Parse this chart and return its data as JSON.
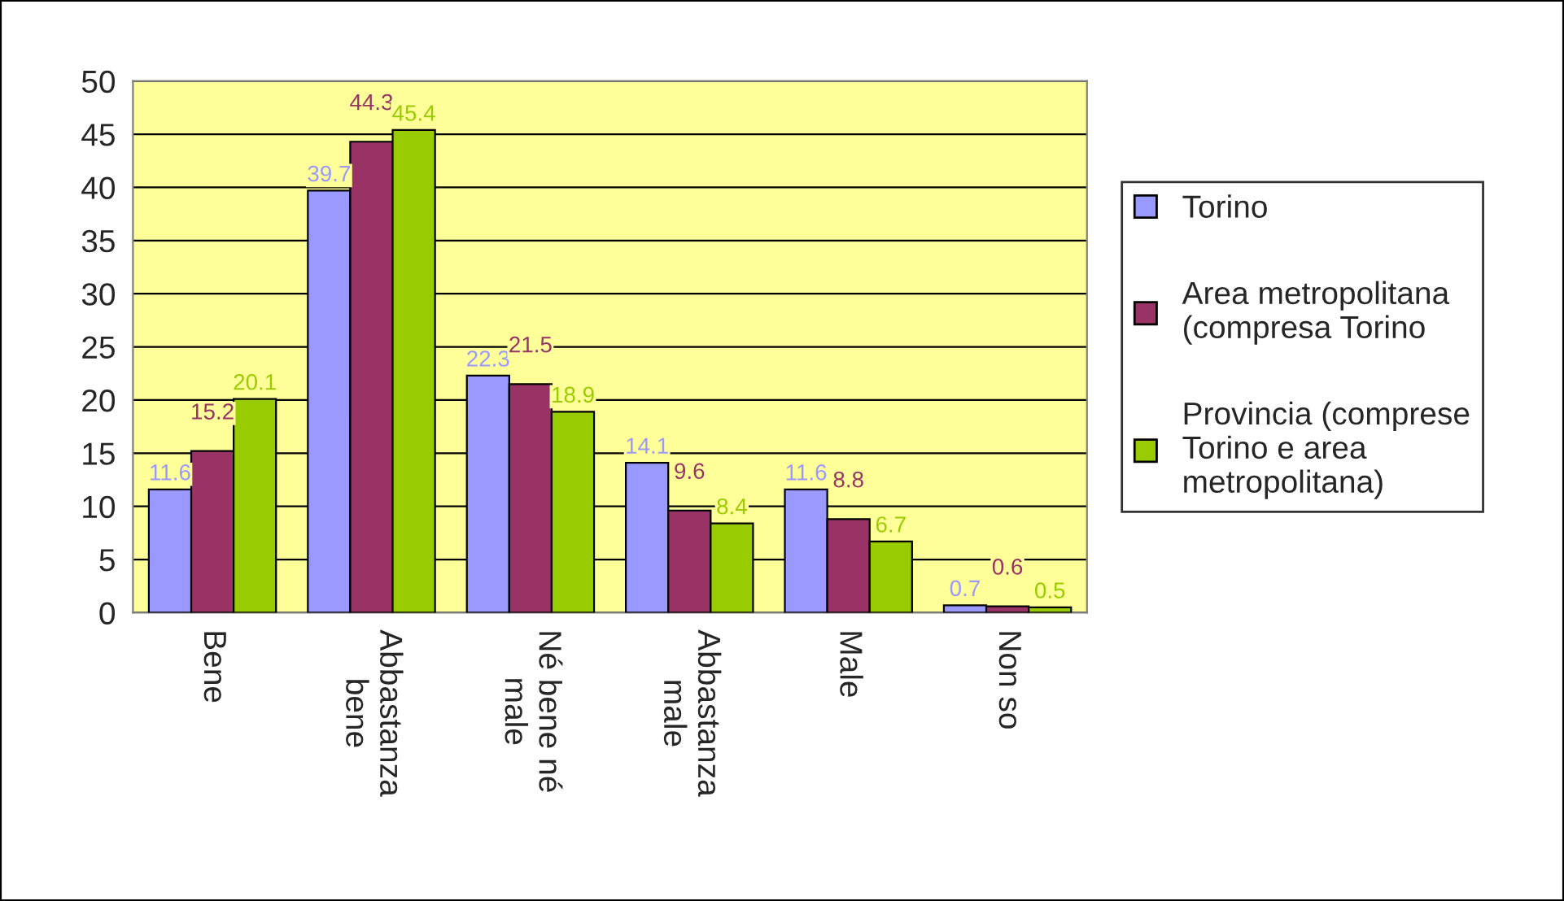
{
  "chart_data": {
    "type": "bar",
    "categories": [
      "Bene",
      "Abbastanza\nbene",
      "Né bene né\nmale",
      "Abbastanza\nmale",
      "Male",
      "Non so"
    ],
    "series": [
      {
        "name": "Torino",
        "color": "#9999ff",
        "values": [
          11.6,
          39.7,
          22.3,
          14.1,
          11.6,
          0.7
        ]
      },
      {
        "name": "Area metropolitana\n(compresa Torino",
        "color": "#993366",
        "values": [
          15.2,
          44.3,
          21.5,
          9.6,
          8.8,
          0.6
        ]
      },
      {
        "name": "Provincia (comprese\nTorino e area\nmetropolitana)",
        "color": "#99cc00",
        "values": [
          20.1,
          45.4,
          18.9,
          8.4,
          6.7,
          0.5
        ]
      }
    ],
    "ylim": [
      0,
      50
    ],
    "yticks": [
      0,
      5,
      10,
      15,
      20,
      25,
      30,
      35,
      40,
      45,
      50
    ],
    "grid": "y",
    "legend": "right",
    "data_labels": true
  }
}
